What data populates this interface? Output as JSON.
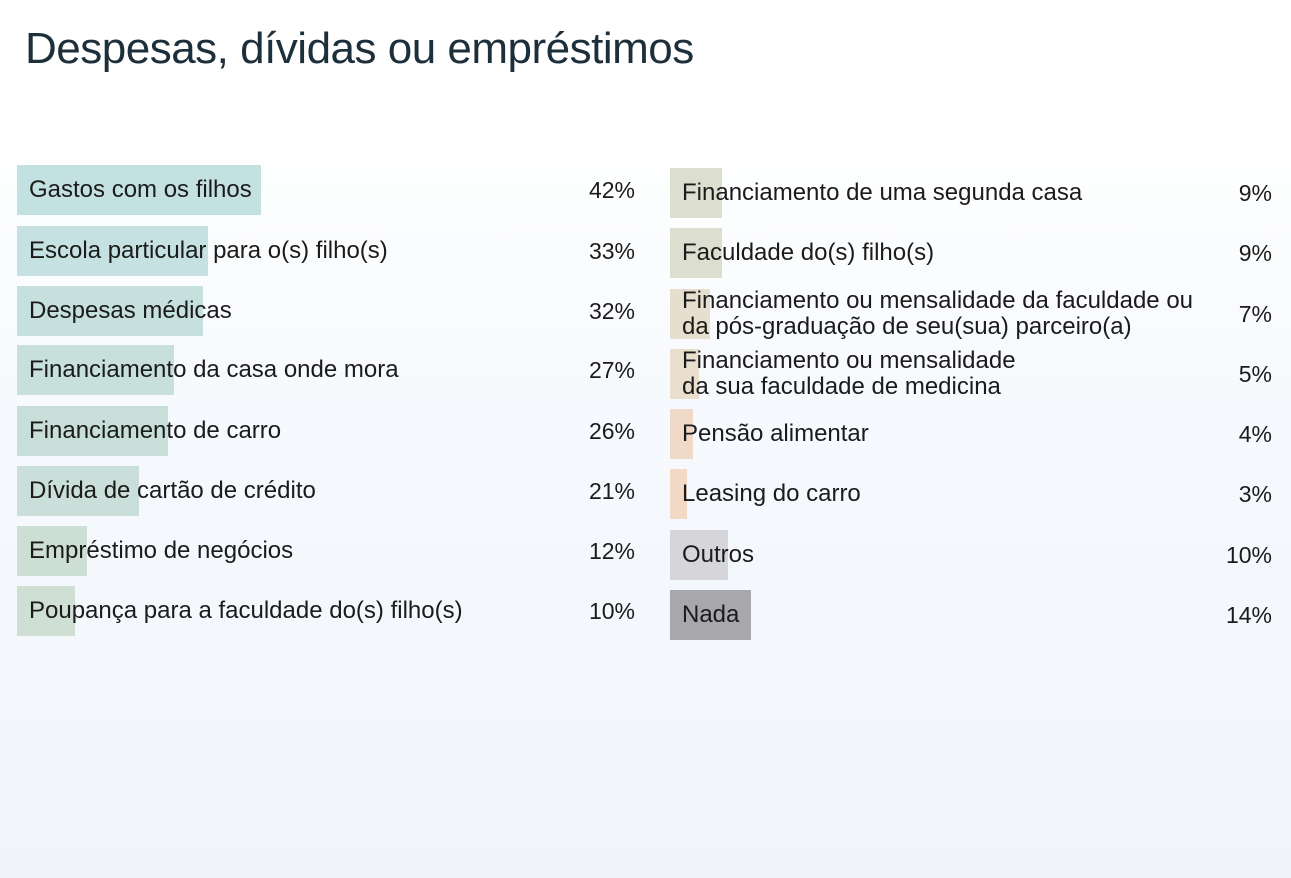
{
  "chart_data": {
    "type": "bar",
    "title": "Despesas, dívidas ou empréstimos",
    "value_unit": "%",
    "groups": [
      {
        "items": [
          {
            "category": "Gastos com os filhos",
            "value": 42,
            "value_label": "42%",
            "color": "#c4e1e1"
          },
          {
            "category": "Escola particular para o(s) filho(s)",
            "value": 33,
            "value_label": "33%",
            "color": "#c5e1e1"
          },
          {
            "category": "Despesas médicas",
            "value": 32,
            "value_label": "32%",
            "color": "#c6e0dd"
          },
          {
            "category": "Financiamento da casa onde mora",
            "value": 27,
            "value_label": "27%",
            "color": "#c8e0dc"
          },
          {
            "category": "Financiamento de carro",
            "value": 26,
            "value_label": "26%",
            "color": "#c8dfd9"
          },
          {
            "category": "Dívida de cartão de crédito",
            "value": 21,
            "value_label": "21%",
            "color": "#cadfd9"
          },
          {
            "category": "Empréstimo de negócios",
            "value": 12,
            "value_label": "12%",
            "color": "#cddfd4"
          },
          {
            "category": "Poupança para a faculdade do(s) filho(s)",
            "value": 10,
            "value_label": "10%",
            "color": "#cfdfd4"
          }
        ]
      },
      {
        "items": [
          {
            "category": "Financiamento de uma segunda casa",
            "value": 9,
            "value_label": "9%",
            "color": "#dcdfcf"
          },
          {
            "category": "Faculdade do(s) filho(s)",
            "value": 9,
            "value_label": "9%",
            "color": "#dcdfcf"
          },
          {
            "category": "Financiamento ou mensalidade da faculdade ou\nda pós-graduação de seu(sua) parceiro(a)",
            "value": 7,
            "value_label": "7%",
            "color": "#e6dfcd"
          },
          {
            "category": "Financiamento ou mensalidade\nda sua faculdade de medicina",
            "value": 5,
            "value_label": "5%",
            "color": "#eadfcd"
          },
          {
            "category": "Pensão alimentar",
            "value": 4,
            "value_label": "4%",
            "color": "#f0dac7"
          },
          {
            "category": "Leasing do carro",
            "value": 3,
            "value_label": "3%",
            "color": "#f2dac7"
          },
          {
            "category": "Outros",
            "value": 10,
            "value_label": "10%",
            "color": "#d6d6da"
          },
          {
            "category": "Nada",
            "value": 14,
            "value_label": "14%",
            "color": "#a8a7ab"
          }
        ]
      }
    ]
  }
}
